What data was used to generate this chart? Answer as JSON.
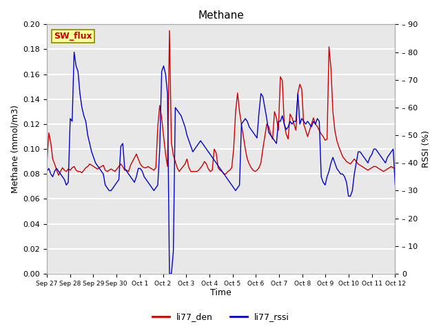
{
  "title": "Methane",
  "ylabel_left": "Methane (mmol/m3)",
  "ylabel_right": "RSSI (%)",
  "xlabel": "Time",
  "ylim_left": [
    0.0,
    0.2
  ],
  "ylim_right": [
    0,
    90
  ],
  "yticks_left": [
    0.0,
    0.02,
    0.04,
    0.06,
    0.08,
    0.1,
    0.12,
    0.14,
    0.16,
    0.18,
    0.2
  ],
  "yticks_right": [
    0,
    10,
    20,
    30,
    40,
    50,
    60,
    70,
    80,
    90
  ],
  "background_color": "#e8e8e8",
  "grid_color": "#ffffff",
  "line1_color": "#cc0000",
  "line2_color": "#0000cc",
  "line1_label": "li77_den",
  "line2_label": "li77_rssi",
  "sw_flux_bg": "#ffff99",
  "sw_flux_border": "#999900",
  "sw_flux_text_color": "#cc0000",
  "xtick_labels": [
    "Sep 27",
    "Sep 28",
    "Sep 29",
    "Sep 30",
    "Oct 1",
    "Oct 2",
    "Oct 3",
    "Oct 4",
    "Oct 5",
    "Oct 6",
    "Oct 7",
    "Oct 8",
    "Oct 9",
    "Oct 10",
    "Oct 11",
    "Oct 12"
  ],
  "den_data": [
    0.089,
    0.113,
    0.105,
    0.092,
    0.088,
    0.083,
    0.079,
    0.082,
    0.085,
    0.083,
    0.082,
    0.084,
    0.083,
    0.085,
    0.086,
    0.083,
    0.082,
    0.082,
    0.081,
    0.083,
    0.085,
    0.086,
    0.088,
    0.087,
    0.086,
    0.085,
    0.084,
    0.085,
    0.086,
    0.087,
    0.083,
    0.082,
    0.083,
    0.084,
    0.083,
    0.082,
    0.084,
    0.086,
    0.088,
    0.086,
    0.083,
    0.083,
    0.082,
    0.087,
    0.09,
    0.093,
    0.096,
    0.092,
    0.088,
    0.086,
    0.085,
    0.085,
    0.086,
    0.085,
    0.084,
    0.083,
    0.085,
    0.118,
    0.135,
    0.125,
    0.11,
    0.096,
    0.086,
    0.195,
    0.105,
    0.095,
    0.09,
    0.085,
    0.082,
    0.084,
    0.086,
    0.088,
    0.092,
    0.085,
    0.082,
    0.082,
    0.082,
    0.082,
    0.083,
    0.085,
    0.087,
    0.09,
    0.088,
    0.084,
    0.082,
    0.083,
    0.1,
    0.097,
    0.085,
    0.083,
    0.082,
    0.08,
    0.08,
    0.082,
    0.083,
    0.085,
    0.1,
    0.13,
    0.145,
    0.13,
    0.12,
    0.11,
    0.1,
    0.092,
    0.088,
    0.085,
    0.083,
    0.082,
    0.083,
    0.085,
    0.089,
    0.1,
    0.11,
    0.12,
    0.118,
    0.112,
    0.108,
    0.13,
    0.125,
    0.115,
    0.158,
    0.155,
    0.12,
    0.112,
    0.108,
    0.128,
    0.125,
    0.12,
    0.115,
    0.145,
    0.152,
    0.148,
    0.12,
    0.115,
    0.11,
    0.115,
    0.12,
    0.125,
    0.12,
    0.118,
    0.115,
    0.112,
    0.11,
    0.107,
    0.108,
    0.182,
    0.165,
    0.13,
    0.115,
    0.107,
    0.102,
    0.098,
    0.094,
    0.092,
    0.09,
    0.089,
    0.088,
    0.09,
    0.092,
    0.09,
    0.088,
    0.087,
    0.086,
    0.085,
    0.084,
    0.083,
    0.084,
    0.085,
    0.086,
    0.086,
    0.085,
    0.084,
    0.083,
    0.082,
    0.083,
    0.084,
    0.085,
    0.086,
    0.085,
    0.084
  ],
  "rssi_data": [
    37,
    38,
    36,
    35,
    37,
    38,
    37,
    36,
    35,
    34,
    32,
    33,
    56,
    55,
    80,
    75,
    73,
    65,
    60,
    57,
    55,
    50,
    47,
    44,
    42,
    40,
    39,
    38,
    37,
    36,
    32,
    31,
    30,
    30,
    31,
    32,
    33,
    34,
    46,
    47,
    38,
    37,
    36,
    35,
    34,
    33,
    35,
    38,
    38,
    37,
    35,
    34,
    33,
    32,
    31,
    30,
    31,
    32,
    45,
    73,
    75,
    72,
    65,
    0,
    0,
    8,
    60,
    59,
    58,
    57,
    55,
    53,
    50,
    48,
    46,
    44,
    45,
    46,
    47,
    48,
    47,
    46,
    45,
    44,
    43,
    42,
    41,
    40,
    39,
    38,
    37,
    36,
    35,
    34,
    33,
    32,
    31,
    30,
    31,
    32,
    54,
    55,
    56,
    55,
    53,
    52,
    51,
    50,
    49,
    58,
    65,
    64,
    60,
    56,
    51,
    50,
    49,
    48,
    47,
    55,
    55,
    57,
    54,
    52,
    53,
    55,
    54,
    55,
    55,
    65,
    54,
    56,
    55,
    54,
    55,
    54,
    53,
    55,
    54,
    56,
    55,
    35,
    33,
    32,
    35,
    37,
    40,
    42,
    40,
    38,
    37,
    36,
    36,
    35,
    33,
    28,
    28,
    30,
    36,
    40,
    44,
    44,
    43,
    42,
    41,
    40,
    42,
    43,
    45,
    45,
    44,
    43,
    42,
    41,
    40,
    42,
    43,
    44,
    45,
    32
  ],
  "n_points": 180,
  "xlim_num": [
    0,
    15
  ]
}
